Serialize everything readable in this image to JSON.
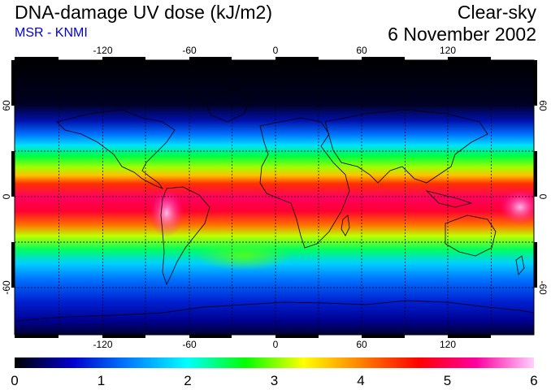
{
  "header": {
    "title": "DNA-damage UV dose (kJ/m2)",
    "source": "MSR - KNMI",
    "condition": "Clear-sky",
    "date": "6 November 2002"
  },
  "map": {
    "projection": "equirectangular",
    "lon_range": [
      -180,
      180
    ],
    "lat_range": [
      -90,
      90
    ],
    "lon_ticks": [
      "-120",
      "-60",
      "0",
      "60",
      "120"
    ],
    "lat_ticks": [
      "60",
      "0",
      "-60"
    ],
    "gridlines": "dashed every 30 degrees",
    "colors": {
      "text_source": "#0000dd",
      "coastline": "#000000",
      "grid": "#000000"
    }
  },
  "colorbar": {
    "labels": [
      "0",
      "1",
      "2",
      "3",
      "4",
      "5",
      "6"
    ],
    "range": [
      0,
      6
    ],
    "stops": [
      "#000000",
      "#0000cc",
      "#0080ff",
      "#00ffff",
      "#00ff00",
      "#ffff00",
      "#ff8000",
      "#ff0000",
      "#ff00a0",
      "#ffd0ff"
    ]
  }
}
